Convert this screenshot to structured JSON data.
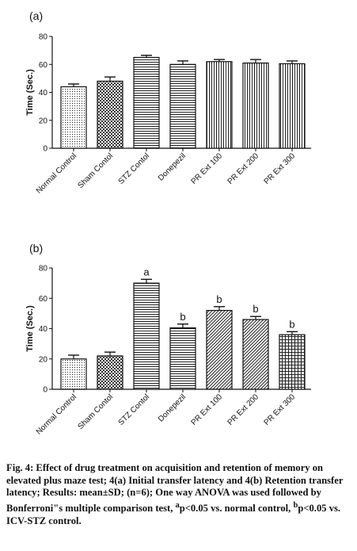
{
  "chart_data": [
    {
      "panel": "(a)",
      "type": "bar",
      "ylabel": "Time (Sec.)",
      "ylim": [
        0,
        80
      ],
      "yticks": [
        0,
        20,
        40,
        60,
        80
      ],
      "categories": [
        "Normal Control",
        "Sham Contol",
        "STZ Contol",
        "Donepezil",
        "PR Ext 100",
        "PR Ext 200",
        "PR Ext 300"
      ],
      "values": [
        44,
        48,
        65,
        60,
        62,
        61,
        60.5
      ],
      "errors": [
        2,
        3,
        1.5,
        2.5,
        1.5,
        2.5,
        2
      ],
      "labels": [
        "",
        "",
        "",
        "",
        "",
        "",
        ""
      ],
      "patterns": [
        "dots",
        "checker",
        "hlines",
        "hlines",
        "vlines",
        "vlines",
        "vlines"
      ]
    },
    {
      "panel": "(b)",
      "type": "bar",
      "ylabel": "Time (Sec.)",
      "ylim": [
        0,
        80
      ],
      "yticks": [
        0,
        20,
        40,
        60,
        80
      ],
      "categories": [
        "Normal Control",
        "Sham Contol",
        "STZ Contol",
        "Donepezil",
        "PR Ext 100",
        "PR Ext 200",
        "PR Ext 300"
      ],
      "values": [
        20,
        22,
        70,
        40.5,
        52,
        46,
        36
      ],
      "errors": [
        2.5,
        2.5,
        2.5,
        2.5,
        2.5,
        2,
        2
      ],
      "labels": [
        "",
        "",
        "a",
        "b",
        "b",
        "b",
        "b"
      ],
      "patterns": [
        "dots",
        "checker",
        "hlines",
        "hlines",
        "diag",
        "diag",
        "grid"
      ]
    }
  ],
  "caption": {
    "fig": "Fig. 4:",
    "text": " Effect of drug treatment on acquisition and retention of memory on elevated plus maze test; 4(a) Initial transfer latency and 4(b) Retention transfer latency; Results: mean±SD; (n=6); One way ANOVA was used followed by Bonferroni\"s multiple comparison test, ",
    "sup_a": "a",
    "p1": "p<0.05 vs. normal control, ",
    "sup_b": "b",
    "p2": "p<0.05 vs. ICV-STZ control."
  }
}
